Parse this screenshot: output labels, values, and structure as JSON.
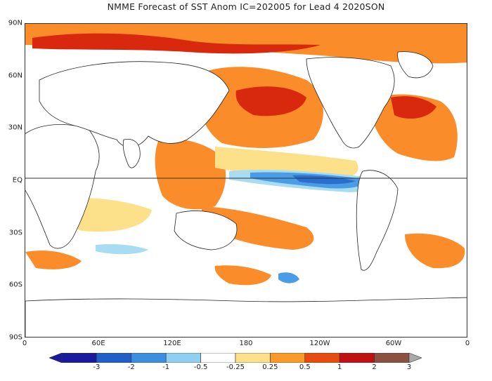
{
  "title": "NMME Forecast of SST Anom IC=202005 for Lead 4 2020SON",
  "lat_ticks": [
    "90N",
    "60N",
    "30N",
    "EQ",
    "30S",
    "60S",
    "90S"
  ],
  "lon_ticks": [
    "0",
    "60E",
    "120E",
    "180",
    "120W",
    "60W",
    "0"
  ],
  "colorbar": {
    "labels": [
      "-3",
      "-2",
      "-1",
      "-0.5",
      "-0.25",
      "0.25",
      "0.5",
      "1",
      "2",
      "3"
    ],
    "colors": [
      "#1a1aa0",
      "#1f5fc8",
      "#3c8fe0",
      "#8fd0f0",
      "#ffffff",
      "#fde08a",
      "#fb9a29",
      "#e84a10",
      "#c01010",
      "#8c5040"
    ]
  },
  "palette": {
    "land": "#ffffff",
    "coast": "#222222",
    "light_warm": "#fde08a",
    "warm": "#fb8c2a",
    "hot": "#d8280e",
    "light_cool": "#a8dcf2",
    "cool": "#4a9ce6",
    "deep_cool": "#2a6fd0"
  }
}
